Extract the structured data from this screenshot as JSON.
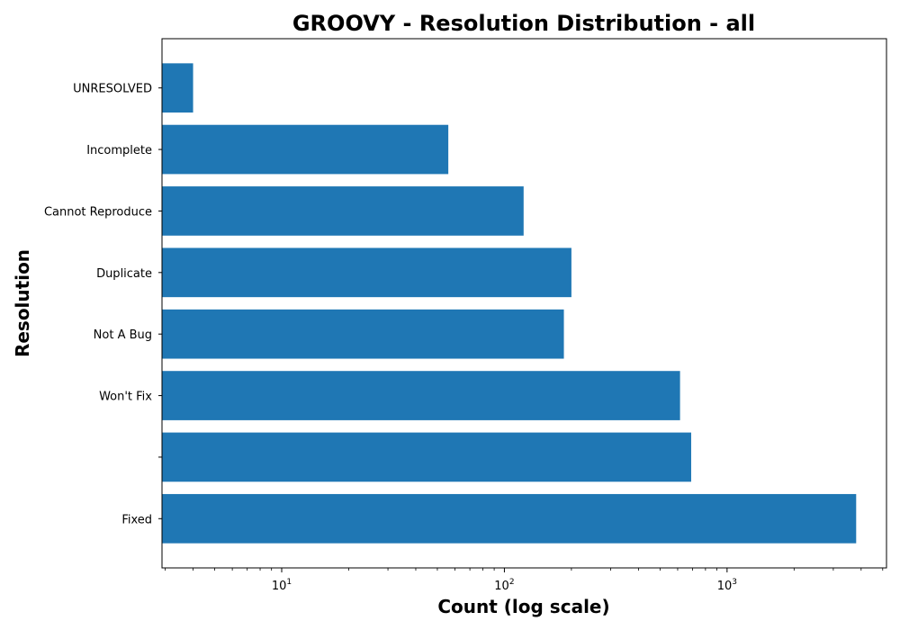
{
  "chart_data": {
    "type": "bar",
    "orientation": "horizontal",
    "title": "GROOVY - Resolution Distribution - all",
    "xlabel": "Count (log scale)",
    "ylabel": "Resolution",
    "xscale": "log",
    "xlim": [
      2.9,
      5200
    ],
    "categories": [
      "Fixed",
      "",
      "Won't Fix",
      "Not A Bug",
      "Duplicate",
      "Cannot Reproduce",
      "Incomplete",
      "UNRESOLVED"
    ],
    "values": [
      3800,
      690,
      615,
      185,
      200,
      122,
      56,
      4
    ],
    "x_ticks": [
      {
        "base": "10",
        "exp": "1",
        "value": 10
      },
      {
        "base": "10",
        "exp": "2",
        "value": 100
      },
      {
        "base": "10",
        "exp": "3",
        "value": 1000
      }
    ],
    "bar_color": "#1f77b4",
    "grid": false,
    "legend": "none"
  }
}
